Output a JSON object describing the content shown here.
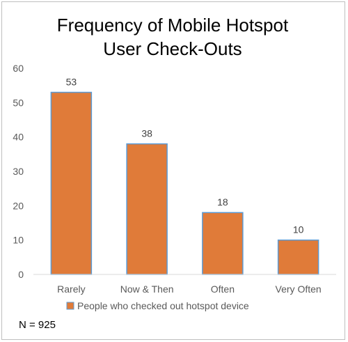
{
  "chart_data": {
    "type": "bar",
    "title_lines": [
      "Frequency of Mobile Hotspot",
      "User Check-Outs"
    ],
    "categories": [
      "Rarely",
      "Now & Then",
      "Often",
      "Very Often"
    ],
    "series": [
      {
        "name": "People who checked out hotspot device",
        "values": [
          53,
          38,
          18,
          10
        ],
        "color": "#e07b39"
      }
    ],
    "data_labels": [
      "53",
      "38",
      "18",
      "10"
    ],
    "y_ticks": [
      "0",
      "10",
      "20",
      "30",
      "40",
      "50",
      "60"
    ],
    "ylim": [
      0,
      60
    ],
    "grid": false,
    "legend_position": "bottom",
    "note": "N = 925",
    "bar_outline_color": "#5b9bd5",
    "axis_color": "#d9d9d9"
  }
}
